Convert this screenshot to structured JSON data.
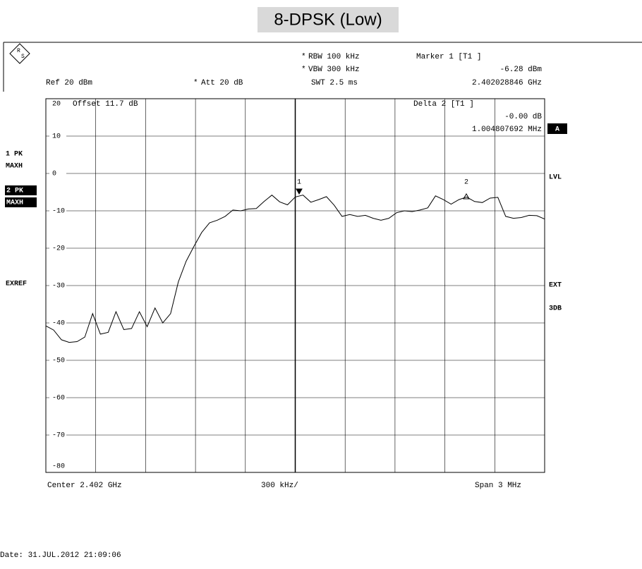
{
  "chart_data": {
    "type": "line",
    "title": "8-DPSK (Low)",
    "series": [
      {
        "name": "Trace",
        "color": "#000000",
        "values": [
          -40.8,
          -41.9,
          -44.5,
          -45.2,
          -45.0,
          -43.8,
          -37.5,
          -43.0,
          -42.5,
          -37.0,
          -41.8,
          -41.5,
          -37.0,
          -41.0,
          -36.0,
          -40.0,
          -37.5,
          -29.0,
          -23.5,
          -19.5,
          -15.8,
          -13.2,
          -12.5,
          -11.5,
          -9.8,
          -10.0,
          -9.5,
          -9.4,
          -7.5,
          -5.8,
          -7.6,
          -8.4,
          -6.3,
          -5.8,
          -7.7,
          -7.0,
          -6.2,
          -8.5,
          -11.5,
          -11.0,
          -11.5,
          -11.2,
          -12.0,
          -12.5,
          -12.0,
          -10.5,
          -10.0,
          -10.2,
          -9.8,
          -9.2,
          -6.0,
          -7.0,
          -8.2,
          -7.0,
          -6.3,
          -7.5,
          -7.8,
          -6.6,
          -6.4,
          -11.5,
          -12.0,
          -11.8,
          -11.2,
          -11.3,
          -12.2
        ]
      }
    ],
    "ylim": [
      -80,
      20
    ],
    "yticks": [
      20,
      10,
      0,
      -10,
      -20,
      -30,
      -40,
      -50,
      -60,
      -70,
      -80
    ],
    "grid": true,
    "markers": [
      "1",
      "2"
    ]
  },
  "instrument": {
    "rbw": "RBW 100 kHz",
    "vbw": "VBW 300 kHz",
    "swt": "SWT 2.5 ms",
    "star": "*",
    "marker_head": "Marker 1 [T1 ]",
    "marker_level": "-6.28 dBm",
    "marker_freq": "2.402028846 GHz",
    "ref": "Ref 20 dBm",
    "att": "Att 20 dB",
    "offset": "Offset 11.7 dB",
    "delta_head": "Delta 2 [T1 ]",
    "delta_level": "-0.00 dB",
    "delta_freq": "1.004807692 MHz",
    "trace1": "1 PK",
    "trace1_mode": "MAXH",
    "trace2": "2 PK",
    "trace2_mode": "MAXH",
    "exref": "EXREF",
    "a": "A",
    "lvl": "LVL",
    "ext": "EXT",
    "db3": "3DB",
    "center": "Center 2.402 GHz",
    "div": "300 kHz/",
    "span": "Span 3 MHz",
    "date": "Date: 31.JUL.2012 21:09:06"
  }
}
